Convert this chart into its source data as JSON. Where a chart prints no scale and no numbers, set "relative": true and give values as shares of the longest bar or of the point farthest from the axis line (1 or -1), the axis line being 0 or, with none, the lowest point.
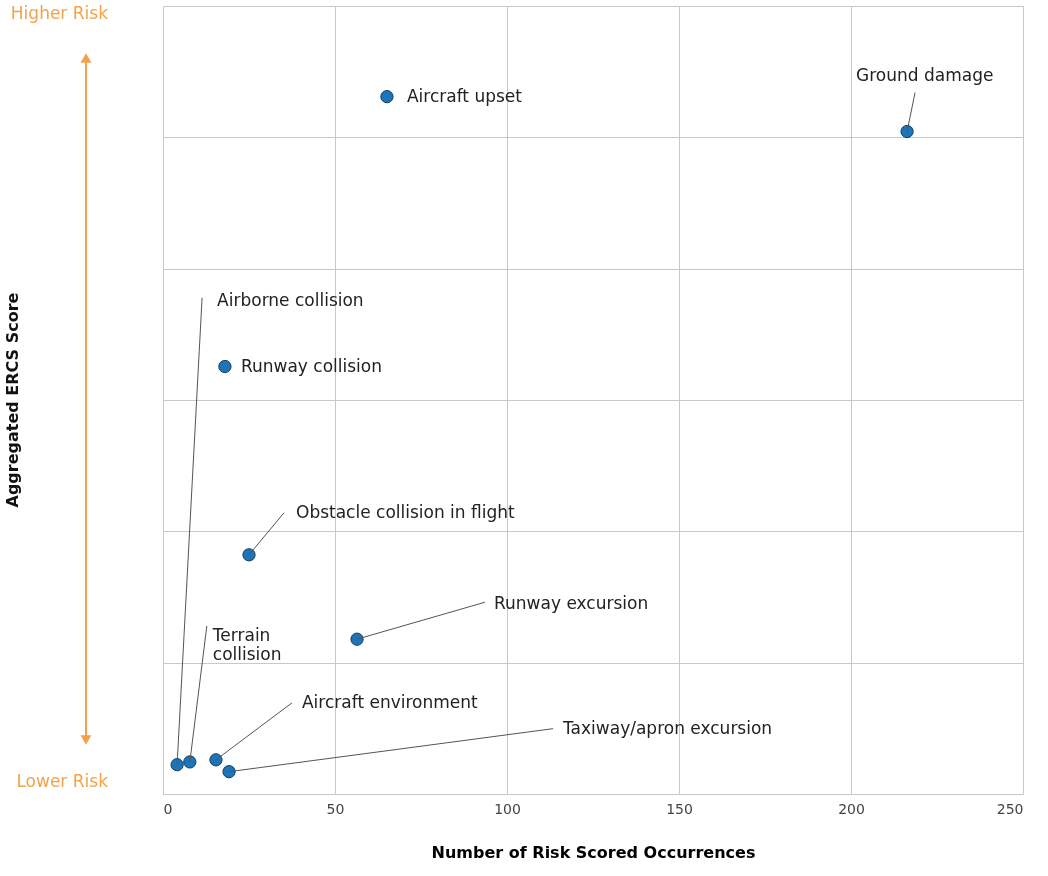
{
  "chart_data": {
    "type": "scatter",
    "xlabel": "Number of Risk Scored Occurrences",
    "relative": true,
    "xlim": [
      0,
      250
    ],
    "xticks": [
      0,
      50,
      100,
      150,
      200,
      250
    ],
    "grid": true,
    "series": [
      {
        "color": "#1f74b8",
        "x": [
          65.1,
          216.3,
          4.1,
          18.0,
          25.0,
          56.4,
          7.8,
          15.4,
          19.2
        ],
        "values": [
          1.0,
          0.95,
          0.042,
          0.613,
          0.343,
          0.222,
          0.046,
          0.049,
          0.032
        ]
      }
    ],
    "annotations": [
      "Higher Risk",
      "Lower Risk",
      "Aggregated ERCS Score",
      {
        "text": "Aircraft upset",
        "x": 65.1,
        "y": 1.0
      },
      {
        "text": "Ground damage",
        "x": 216.3,
        "y": 0.95
      },
      {
        "text": "Airborne collision",
        "x": 4.1,
        "y": 0.042
      },
      {
        "text": "Runway collision",
        "x": 18.0,
        "y": 0.613
      },
      {
        "text": "Obstacle collision in flight",
        "x": 25.0,
        "y": 0.343
      },
      {
        "text": "Runway excursion",
        "x": 56.4,
        "y": 0.222
      },
      {
        "text": "Terrain\ncollision",
        "x": 7.8,
        "y": 0.046
      },
      {
        "text": "Aircraft environment",
        "x": 15.4,
        "y": 0.049
      },
      {
        "text": "Taxiway/apron excursion",
        "x": 19.2,
        "y": 0.032
      }
    ]
  }
}
